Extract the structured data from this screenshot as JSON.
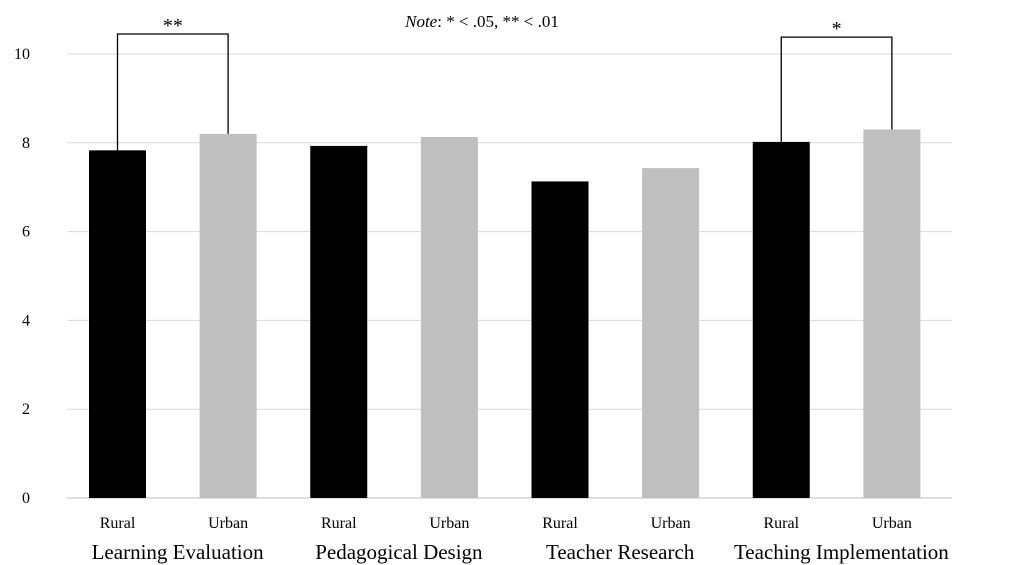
{
  "chart_data": {
    "type": "bar",
    "title": "",
    "note": {
      "prefix": "Note",
      "rest": ": * < .05, ** < .01"
    },
    "categories": [
      "Learning Evaluation",
      "Pedagogical Design",
      "Teacher Research",
      "Teaching Implementation"
    ],
    "sub_labels": [
      "Rural",
      "Urban"
    ],
    "series": [
      {
        "name": "Rural",
        "color": "#000000",
        "values": [
          7.83,
          7.93,
          7.13,
          8.02
        ]
      },
      {
        "name": "Urban",
        "color": "#bfbfbf",
        "values": [
          8.2,
          8.13,
          7.43,
          8.3
        ]
      }
    ],
    "yticks": [
      0,
      2,
      4,
      6,
      8,
      10
    ],
    "ylim": [
      0,
      10
    ],
    "grid": true,
    "legend": "none",
    "significance": [
      {
        "category_index": 0,
        "label": "**",
        "bracket_top": 10.45
      },
      {
        "category_index": 3,
        "label": "*",
        "bracket_top": 10.38
      }
    ]
  }
}
